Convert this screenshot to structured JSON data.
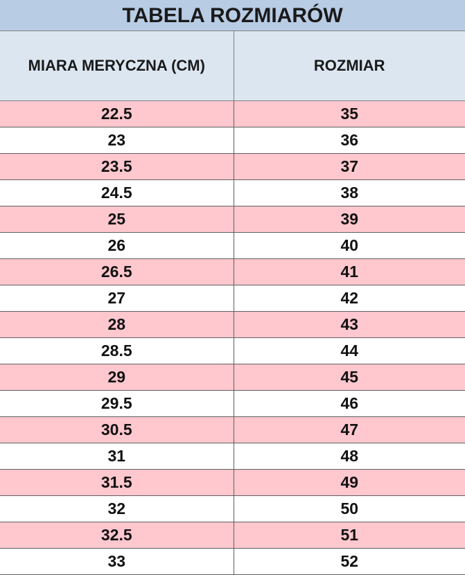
{
  "title": "TABELA ROZMIARÓW",
  "table": {
    "header": [
      "MIARA MERYCZNA (CM)",
      "ROZMIAR"
    ],
    "rows": [
      [
        22.5,
        35
      ],
      [
        23,
        36
      ],
      [
        23.5,
        37
      ],
      [
        24.5,
        38
      ],
      [
        25,
        39
      ],
      [
        26,
        40
      ],
      [
        26.5,
        41
      ],
      [
        27,
        42
      ],
      [
        28,
        43
      ],
      [
        28.5,
        44
      ],
      [
        29,
        45
      ],
      [
        29.5,
        46
      ],
      [
        30.5,
        47
      ],
      [
        31,
        48
      ],
      [
        31.5,
        49
      ],
      [
        32,
        50
      ],
      [
        32.5,
        51
      ],
      [
        33,
        52
      ]
    ]
  }
}
